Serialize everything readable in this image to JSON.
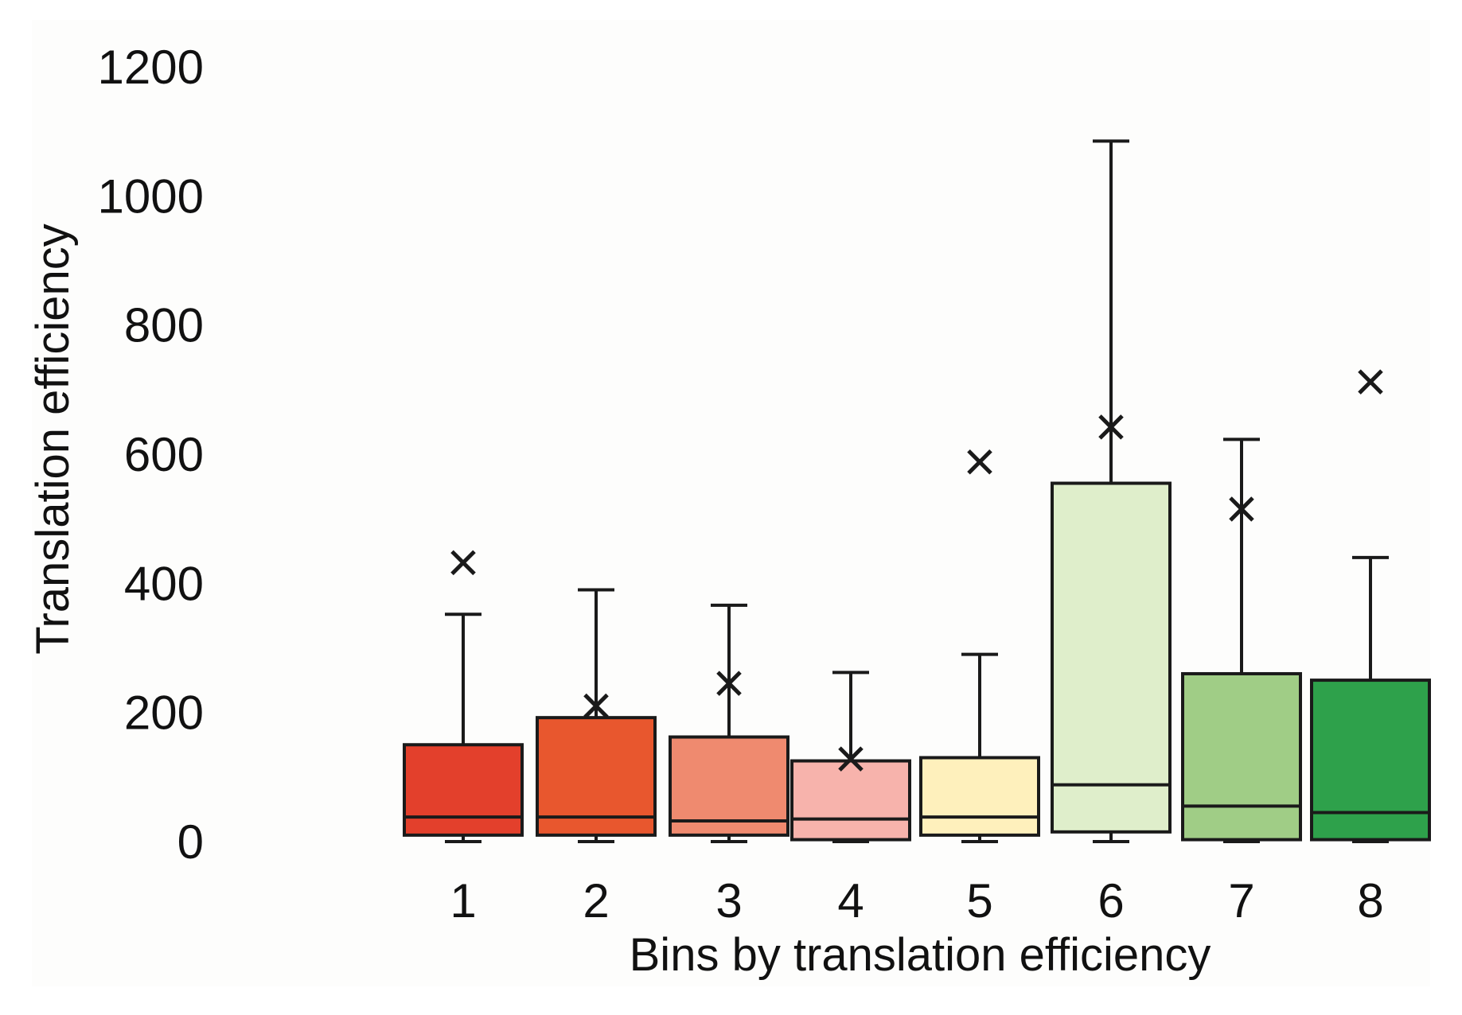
{
  "chart_data": {
    "type": "box",
    "title": "",
    "xlabel": "Bins by translation efficiency",
    "ylabel": "Translation efficiency",
    "ylim": [
      0,
      1200
    ],
    "yticks": [
      0,
      200,
      400,
      600,
      800,
      1000,
      1200
    ],
    "grid": false,
    "legend": "none",
    "categories": [
      "1",
      "2",
      "3",
      "4",
      "5",
      "6",
      "7",
      "8"
    ],
    "boxes": [
      {
        "category": "1",
        "min": 0,
        "q1": 10,
        "median": 38,
        "q3": 150,
        "max": 352,
        "mean": 432,
        "color": "#e3402c"
      },
      {
        "category": "2",
        "min": 0,
        "q1": 10,
        "median": 38,
        "q3": 192,
        "max": 390,
        "mean": 210,
        "color": "#e8572e"
      },
      {
        "category": "3",
        "min": 0,
        "q1": 10,
        "median": 32,
        "q3": 162,
        "max": 366,
        "mean": 245,
        "color": "#ef8a6f"
      },
      {
        "category": "4",
        "min": 0,
        "q1": 3,
        "median": 35,
        "q3": 125,
        "max": 262,
        "mean": 128,
        "color": "#f7b3ac"
      },
      {
        "category": "5",
        "min": 0,
        "q1": 10,
        "median": 38,
        "q3": 130,
        "max": 290,
        "mean": 588,
        "color": "#fef0bc"
      },
      {
        "category": "6",
        "min": 0,
        "q1": 15,
        "median": 88,
        "q3": 555,
        "max": 1085,
        "mean": 642,
        "color": "#dfeecb"
      },
      {
        "category": "7",
        "min": 0,
        "q1": 3,
        "median": 55,
        "q3": 260,
        "max": 623,
        "mean": 515,
        "color": "#a0cd86"
      },
      {
        "category": "8",
        "min": 0,
        "q1": 3,
        "median": 45,
        "q3": 250,
        "max": 440,
        "mean": 712,
        "color": "#2ea14b"
      }
    ]
  }
}
